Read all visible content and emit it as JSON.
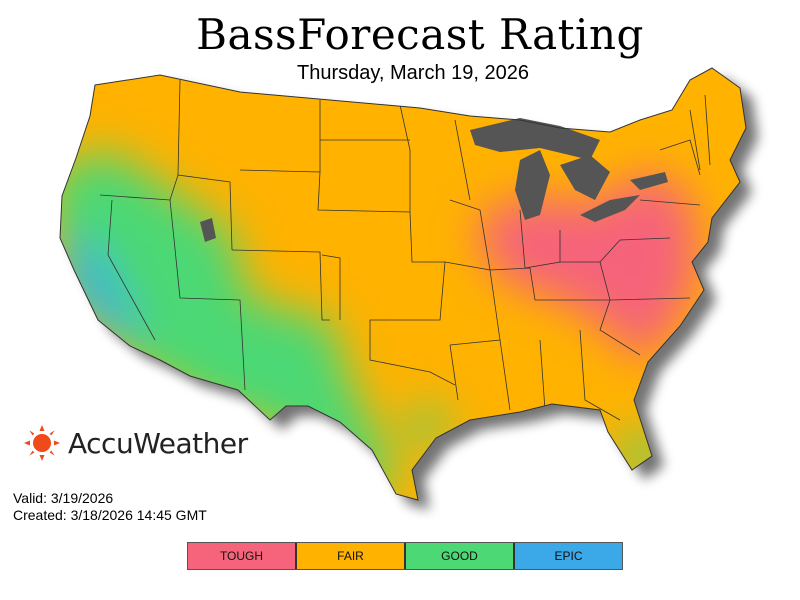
{
  "title": "BassForecast Rating",
  "subtitle": "Thursday, March 19, 2026",
  "brand": {
    "name": "AccuWeather",
    "logo_icon": "sun-icon",
    "color": "#f04a1a"
  },
  "valid": "Valid: 3/19/2026",
  "created": "Created: 3/18/2026 14:45 GMT",
  "legend": [
    {
      "label": "TOUGH",
      "color": "#f5647a"
    },
    {
      "label": "FAIR",
      "color": "#ffb200"
    },
    {
      "label": "GOOD",
      "color": "#4cd874"
    },
    {
      "label": "EPIC",
      "color": "#3ba8e8"
    }
  ],
  "map": {
    "region": "Contiguous United States",
    "water_color": "#555555",
    "boundary_color": "#333333"
  }
}
